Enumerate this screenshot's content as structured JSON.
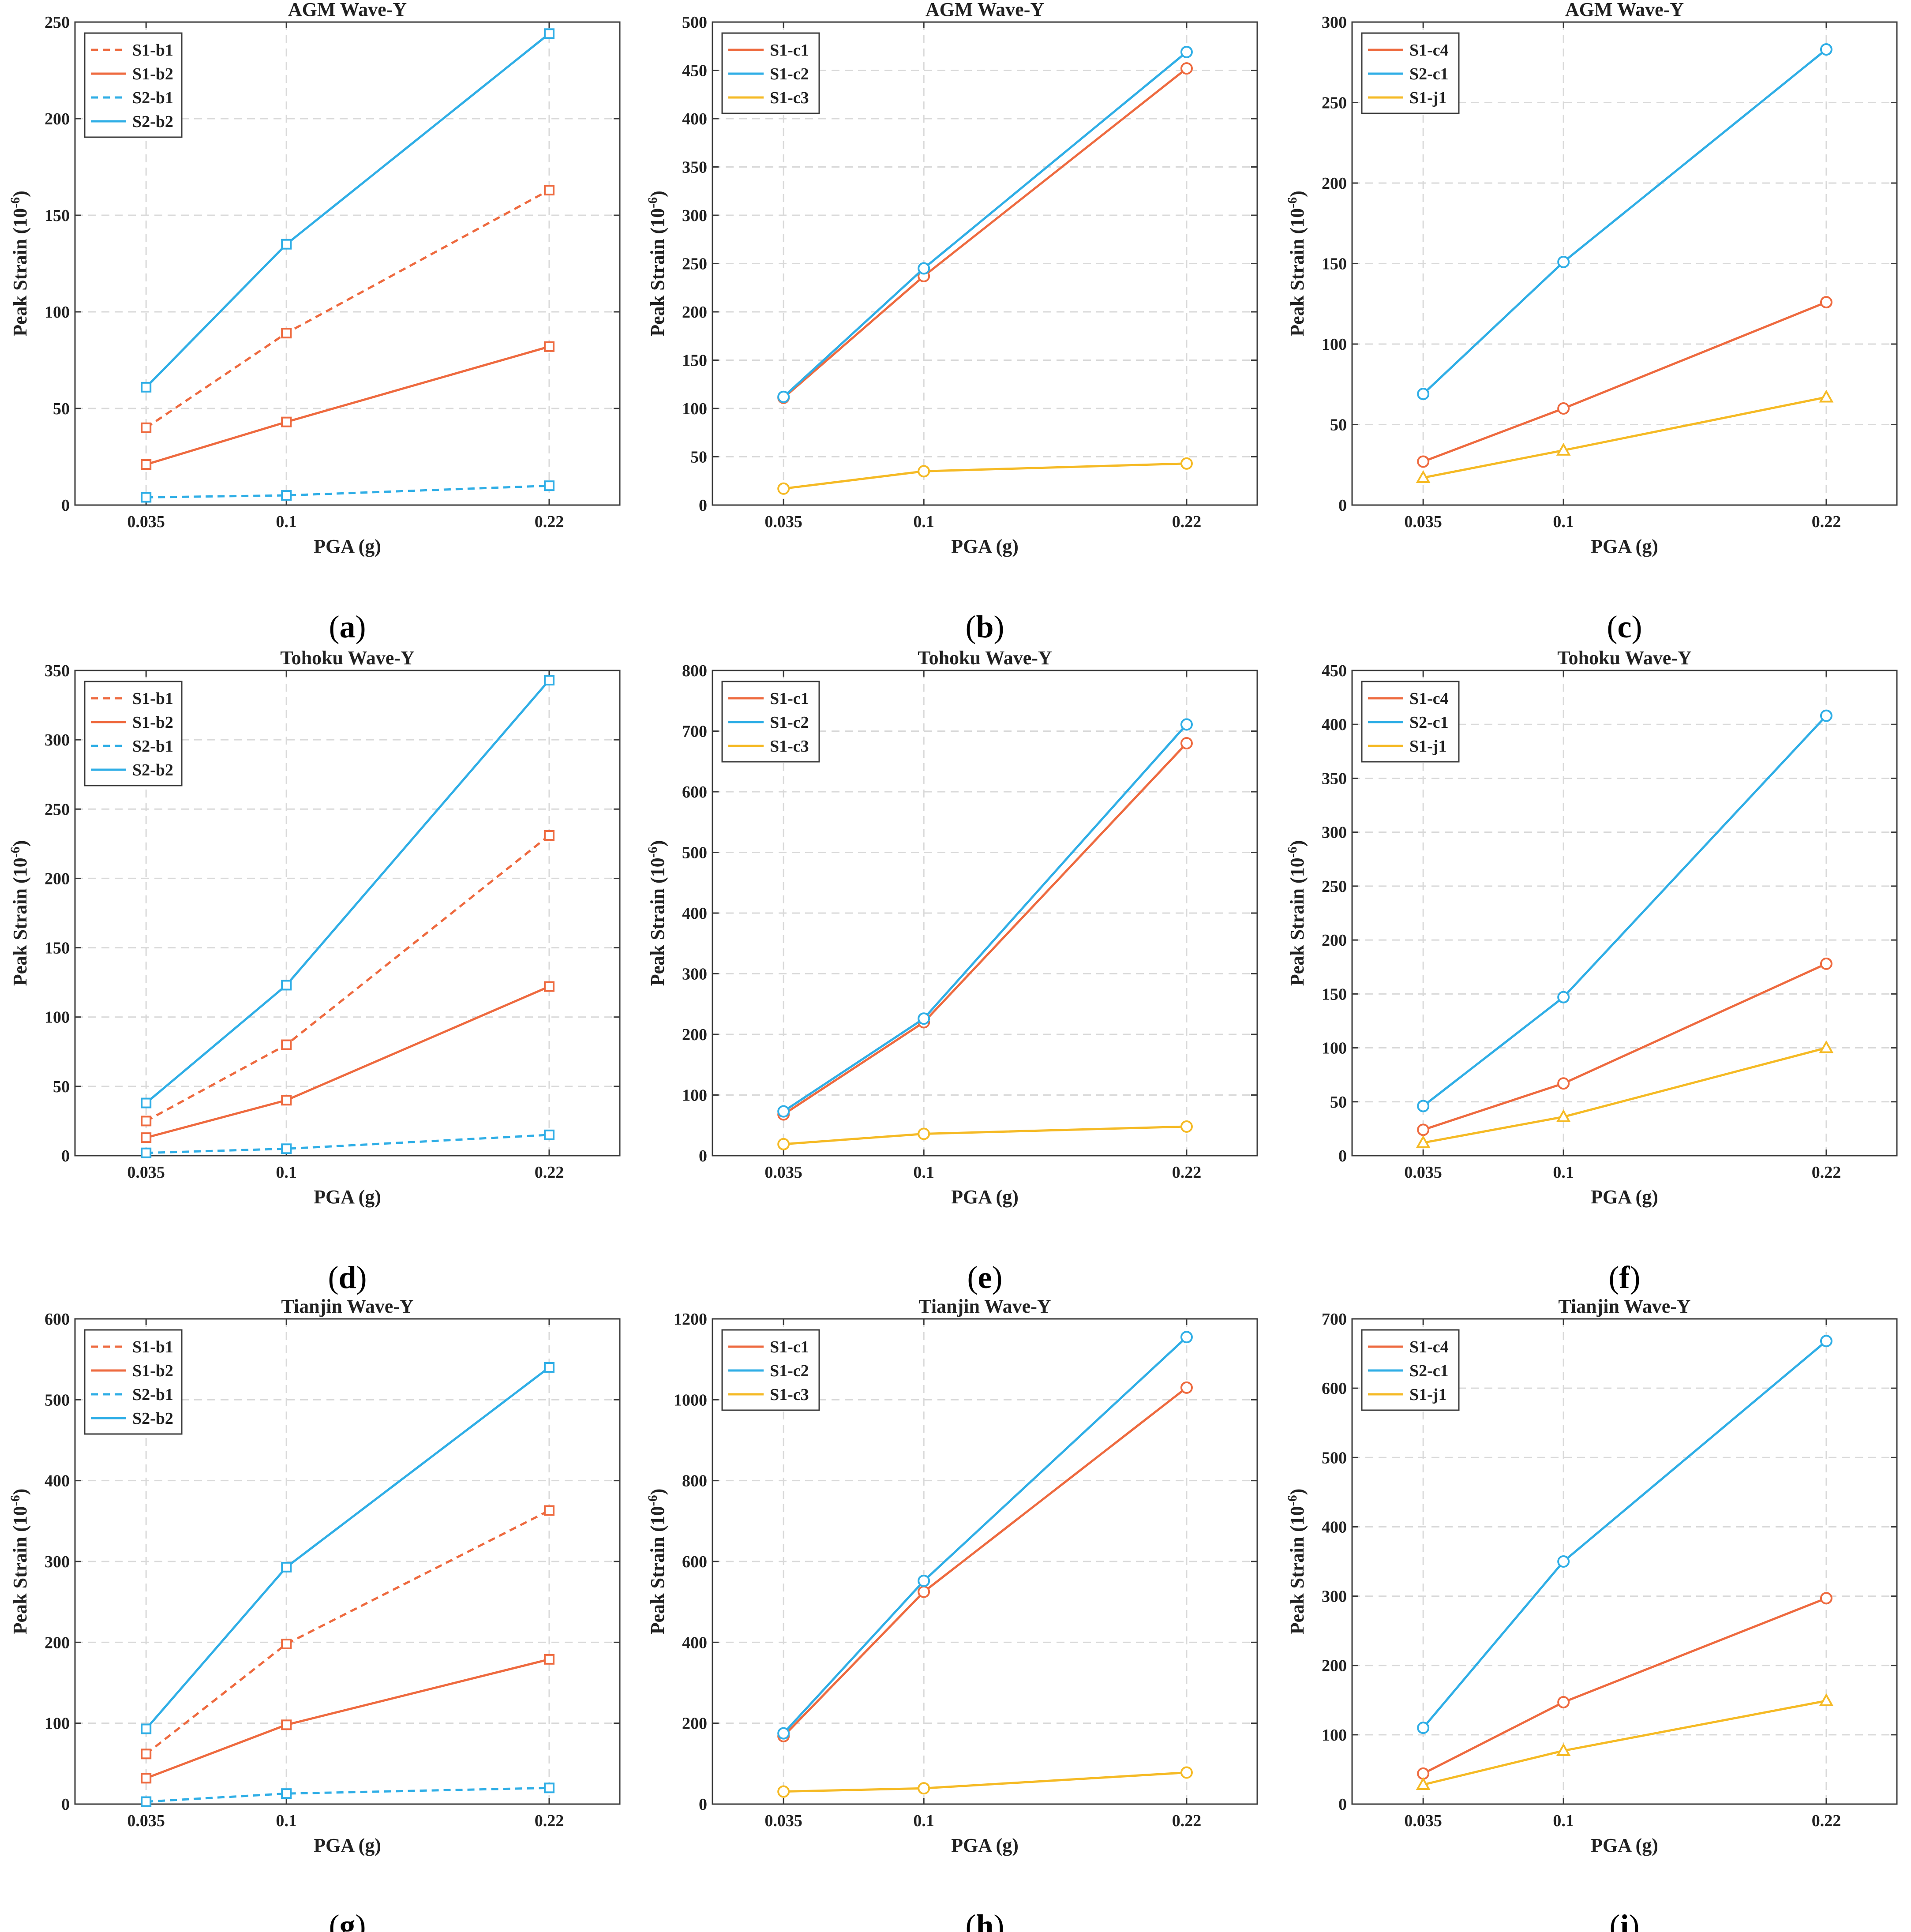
{
  "figure": {
    "colors": {
      "orange": "#EE6A3F",
      "blue": "#2FAEE6",
      "yellow": "#F5BA25",
      "grid": "#d9d9d9",
      "axis": "#3a3a3a"
    }
  },
  "chart_data": [
    {
      "id": "a",
      "panel_label": "a",
      "type": "line",
      "title": "AGM Wave-Y",
      "xlabel": "PGA (g)",
      "ylabel": "Peak Strain (10",
      "ylabel_exp": "-6",
      "ylabel_close": ")",
      "x": [
        0.035,
        0.1,
        0.22
      ],
      "xticks": [
        "0.035",
        "0.1",
        "0.22"
      ],
      "ylim": [
        0,
        250
      ],
      "yticks": [
        0,
        50,
        100,
        150,
        200,
        250
      ],
      "series": [
        {
          "name": "S1-b1",
          "color": "orange",
          "dash": true,
          "marker": "square",
          "values": [
            40,
            89,
            163
          ]
        },
        {
          "name": "S1-b2",
          "color": "orange",
          "dash": false,
          "marker": "square",
          "values": [
            21,
            43,
            82
          ]
        },
        {
          "name": "S2-b1",
          "color": "blue",
          "dash": true,
          "marker": "square",
          "values": [
            4,
            5,
            10
          ]
        },
        {
          "name": "S2-b2",
          "color": "blue",
          "dash": false,
          "marker": "square",
          "values": [
            61,
            135,
            244
          ]
        }
      ]
    },
    {
      "id": "b",
      "panel_label": "b",
      "type": "line",
      "title": "AGM Wave-Y",
      "xlabel": "PGA (g)",
      "ylabel": "Peak Strain (10",
      "ylabel_exp": "-6",
      "ylabel_close": ")",
      "x": [
        0.035,
        0.1,
        0.22
      ],
      "xticks": [
        "0.035",
        "0.1",
        "0.22"
      ],
      "ylim": [
        0,
        500
      ],
      "yticks": [
        0,
        50,
        100,
        150,
        200,
        250,
        300,
        350,
        400,
        450,
        500
      ],
      "series": [
        {
          "name": "S1-c1",
          "color": "orange",
          "dash": false,
          "marker": "circle",
          "values": [
            111,
            237,
            452
          ]
        },
        {
          "name": "S1-c2",
          "color": "blue",
          "dash": false,
          "marker": "circle",
          "values": [
            112,
            245,
            469
          ]
        },
        {
          "name": "S1-c3",
          "color": "yellow",
          "dash": false,
          "marker": "circle",
          "values": [
            17,
            35,
            43
          ]
        }
      ]
    },
    {
      "id": "c",
      "panel_label": "c",
      "type": "line",
      "title": "AGM Wave-Y",
      "xlabel": "PGA (g)",
      "ylabel": "Peak Strain (10",
      "ylabel_exp": "-6",
      "ylabel_close": ")",
      "x": [
        0.035,
        0.1,
        0.22
      ],
      "xticks": [
        "0.035",
        "0.1",
        "0.22"
      ],
      "ylim": [
        0,
        300
      ],
      "yticks": [
        0,
        50,
        100,
        150,
        200,
        250,
        300
      ],
      "series": [
        {
          "name": "S1-c4",
          "color": "orange",
          "dash": false,
          "marker": "circle",
          "values": [
            27,
            60,
            126
          ]
        },
        {
          "name": "S2-c1",
          "color": "blue",
          "dash": false,
          "marker": "circle",
          "values": [
            69,
            151,
            283
          ]
        },
        {
          "name": "S1-j1",
          "color": "yellow",
          "dash": false,
          "marker": "triangle",
          "values": [
            17,
            34,
            67
          ]
        }
      ]
    },
    {
      "id": "d",
      "panel_label": "d",
      "type": "line",
      "title": "Tohoku Wave-Y",
      "xlabel": "PGA (g)",
      "ylabel": "Peak Strain (10",
      "ylabel_exp": "-6",
      "ylabel_close": ")",
      "x": [
        0.035,
        0.1,
        0.22
      ],
      "xticks": [
        "0.035",
        "0.1",
        "0.22"
      ],
      "ylim": [
        0,
        350
      ],
      "yticks": [
        0,
        50,
        100,
        150,
        200,
        250,
        300,
        350
      ],
      "series": [
        {
          "name": "S1-b1",
          "color": "orange",
          "dash": true,
          "marker": "square",
          "values": [
            25,
            80,
            231
          ]
        },
        {
          "name": "S1-b2",
          "color": "orange",
          "dash": false,
          "marker": "square",
          "values": [
            13,
            40,
            122
          ]
        },
        {
          "name": "S2-b1",
          "color": "blue",
          "dash": true,
          "marker": "square",
          "values": [
            2,
            5,
            15
          ]
        },
        {
          "name": "S2-b2",
          "color": "blue",
          "dash": false,
          "marker": "square",
          "values": [
            38,
            123,
            343
          ]
        }
      ]
    },
    {
      "id": "e",
      "panel_label": "e",
      "type": "line",
      "title": "Tohoku Wave-Y",
      "xlabel": "PGA (g)",
      "ylabel": "Peak Strain (10",
      "ylabel_exp": "-6",
      "ylabel_close": ")",
      "x": [
        0.035,
        0.1,
        0.22
      ],
      "xticks": [
        "0.035",
        "0.1",
        "0.22"
      ],
      "ylim": [
        0,
        800
      ],
      "yticks": [
        0,
        100,
        200,
        300,
        400,
        500,
        600,
        700,
        800
      ],
      "series": [
        {
          "name": "S1-c1",
          "color": "orange",
          "dash": false,
          "marker": "circle",
          "values": [
            68,
            220,
            680
          ]
        },
        {
          "name": "S1-c2",
          "color": "blue",
          "dash": false,
          "marker": "circle",
          "values": [
            73,
            226,
            711
          ]
        },
        {
          "name": "S1-c3",
          "color": "yellow",
          "dash": false,
          "marker": "circle",
          "values": [
            19,
            36,
            48
          ]
        }
      ]
    },
    {
      "id": "f",
      "panel_label": "f",
      "type": "line",
      "title": "Tohoku Wave-Y",
      "xlabel": "PGA (g)",
      "ylabel": "Peak Strain (10",
      "ylabel_exp": "-6",
      "ylabel_close": ")",
      "x": [
        0.035,
        0.1,
        0.22
      ],
      "xticks": [
        "0.035",
        "0.1",
        "0.22"
      ],
      "ylim": [
        0,
        450
      ],
      "yticks": [
        0,
        50,
        100,
        150,
        200,
        250,
        300,
        350,
        400,
        450
      ],
      "series": [
        {
          "name": "S1-c4",
          "color": "orange",
          "dash": false,
          "marker": "circle",
          "values": [
            24,
            67,
            178
          ]
        },
        {
          "name": "S2-c1",
          "color": "blue",
          "dash": false,
          "marker": "circle",
          "values": [
            46,
            147,
            408
          ]
        },
        {
          "name": "S1-j1",
          "color": "yellow",
          "dash": false,
          "marker": "triangle",
          "values": [
            12,
            36,
            100
          ]
        }
      ]
    },
    {
      "id": "g",
      "panel_label": "g",
      "type": "line",
      "title": "Tianjin Wave-Y",
      "xlabel": "PGA (g)",
      "ylabel": "Peak Strain (10",
      "ylabel_exp": "-6",
      "ylabel_close": ")",
      "x": [
        0.035,
        0.1,
        0.22
      ],
      "xticks": [
        "0.035",
        "0.1",
        "0.22"
      ],
      "ylim": [
        0,
        600
      ],
      "yticks": [
        0,
        100,
        200,
        300,
        400,
        500,
        600
      ],
      "series": [
        {
          "name": "S1-b1",
          "color": "orange",
          "dash": true,
          "marker": "square",
          "values": [
            62,
            198,
            363
          ]
        },
        {
          "name": "S1-b2",
          "color": "orange",
          "dash": false,
          "marker": "square",
          "values": [
            32,
            98,
            179
          ]
        },
        {
          "name": "S2-b1",
          "color": "blue",
          "dash": true,
          "marker": "square",
          "values": [
            3,
            13,
            20
          ]
        },
        {
          "name": "S2-b2",
          "color": "blue",
          "dash": false,
          "marker": "square",
          "values": [
            93,
            293,
            540
          ]
        }
      ]
    },
    {
      "id": "h",
      "panel_label": "h",
      "type": "line",
      "title": "Tianjin Wave-Y",
      "xlabel": "PGA (g)",
      "ylabel": "Peak Strain (10",
      "ylabel_exp": "-6",
      "ylabel_close": ")",
      "x": [
        0.035,
        0.1,
        0.22
      ],
      "xticks": [
        "0.035",
        "0.1",
        "0.22"
      ],
      "ylim": [
        0,
        1200
      ],
      "yticks": [
        0,
        200,
        400,
        600,
        800,
        1000,
        1200
      ],
      "series": [
        {
          "name": "S1-c1",
          "color": "orange",
          "dash": false,
          "marker": "circle",
          "values": [
            168,
            525,
            1030
          ]
        },
        {
          "name": "S1-c2",
          "color": "blue",
          "dash": false,
          "marker": "circle",
          "values": [
            175,
            552,
            1155
          ]
        },
        {
          "name": "S1-c3",
          "color": "yellow",
          "dash": false,
          "marker": "circle",
          "values": [
            31,
            39,
            78
          ]
        }
      ]
    },
    {
      "id": "i",
      "panel_label": "i",
      "type": "line",
      "title": "Tianjin Wave-Y",
      "xlabel": "PGA (g)",
      "ylabel": "Peak Strain (10",
      "ylabel_exp": "-6",
      "ylabel_close": ")",
      "x": [
        0.035,
        0.1,
        0.22
      ],
      "xticks": [
        "0.035",
        "0.1",
        "0.22"
      ],
      "ylim": [
        0,
        700
      ],
      "yticks": [
        0,
        100,
        200,
        300,
        400,
        500,
        600,
        700
      ],
      "series": [
        {
          "name": "S1-c4",
          "color": "orange",
          "dash": false,
          "marker": "circle",
          "values": [
            44,
            147,
            297
          ]
        },
        {
          "name": "S2-c1",
          "color": "blue",
          "dash": false,
          "marker": "circle",
          "values": [
            110,
            350,
            668
          ]
        },
        {
          "name": "S1-j1",
          "color": "yellow",
          "dash": false,
          "marker": "triangle",
          "values": [
            28,
            77,
            149
          ]
        }
      ]
    }
  ]
}
